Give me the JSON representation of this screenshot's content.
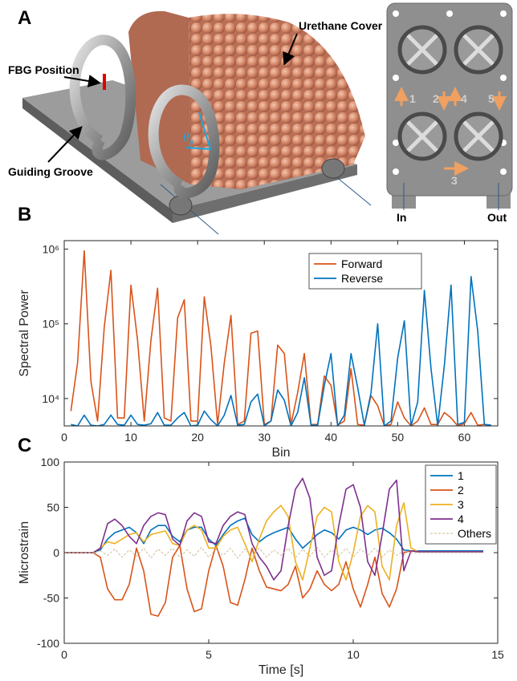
{
  "figure": {
    "panel_labels": [
      "A",
      "B",
      "C"
    ],
    "annotations": [
      "Urethane Cover",
      "FBG Position",
      "Guiding Groove"
    ],
    "angle_label": "θ",
    "angle_subscript": "p",
    "inset_labels": [
      "1",
      "2",
      "3",
      "4",
      "5"
    ],
    "inset_ports": [
      "In",
      "Out"
    ]
  },
  "chart_data": [
    {
      "type": "line",
      "xlabel": "Bin",
      "ylabel": "Spectral Power",
      "log_y": true,
      "legend": "top-right",
      "grid": false,
      "xlim": [
        0,
        65
      ],
      "xticks": [
        0,
        10,
        20,
        30,
        40,
        50,
        60
      ],
      "ylim": [
        4300,
        1300000
      ],
      "yticks": [
        {
          "value": 10000,
          "label": "10⁴"
        },
        {
          "value": 100000,
          "label": "10⁵"
        },
        {
          "value": 1000000,
          "label": "10⁶"
        }
      ],
      "x": [
        1,
        2,
        3,
        4,
        5,
        6,
        7,
        8,
        9,
        10,
        11,
        12,
        13,
        14,
        15,
        16,
        17,
        18,
        19,
        20,
        21,
        22,
        23,
        24,
        25,
        26,
        27,
        28,
        29,
        30,
        31,
        32,
        33,
        34,
        35,
        36,
        37,
        38,
        39,
        40,
        41,
        42,
        43,
        44,
        45,
        46,
        47,
        48,
        49,
        50,
        51,
        52,
        53,
        54,
        55,
        56,
        57,
        58,
        59,
        60,
        61,
        62,
        63,
        64
      ],
      "series": [
        {
          "name": "Forward",
          "color": "#D95319",
          "values": [
            6800,
            30000,
            950000,
            17000,
            5000,
            90000,
            520000,
            5500,
            5500,
            330000,
            60000,
            5000,
            60000,
            300000,
            5500,
            5000,
            120000,
            210000,
            5000,
            5000,
            230000,
            50000,
            4500,
            30000,
            130000,
            4500,
            5000,
            75000,
            80000,
            4500,
            5000,
            52000,
            40000,
            4500,
            12000,
            40000,
            4500,
            4500,
            20000,
            15000,
            4400,
            5000,
            25000,
            4500,
            4400,
            11000,
            8000,
            4300,
            4500,
            9000,
            5500,
            4300,
            5000,
            7500,
            4500,
            4500,
            6500,
            5500,
            4300,
            4600,
            6500,
            4400,
            4500,
            4400
          ]
        },
        {
          "name": "Reverse",
          "color": "#0072BD",
          "values": [
            4500,
            4300,
            6000,
            4400,
            4300,
            4500,
            6000,
            4500,
            4400,
            6000,
            4500,
            4400,
            4600,
            6500,
            4400,
            4400,
            5500,
            6500,
            4300,
            4400,
            6800,
            5200,
            4300,
            6000,
            11000,
            4400,
            4500,
            9000,
            11500,
            4300,
            5000,
            13000,
            9500,
            4300,
            6500,
            19000,
            4400,
            4400,
            15000,
            40000,
            4300,
            6000,
            40000,
            14000,
            4400,
            12000,
            100000,
            4300,
            5000,
            35000,
            110000,
            4300,
            9000,
            280000,
            25000,
            4300,
            28000,
            330000,
            4500,
            4800,
            430000,
            80000,
            4500,
            4400
          ]
        }
      ]
    },
    {
      "type": "line",
      "xlabel": "Time [s]",
      "ylabel": "Microstrain",
      "log_y": false,
      "legend": "top-right",
      "grid": false,
      "xlim": [
        0,
        15
      ],
      "xticks": [
        0,
        5,
        10,
        15
      ],
      "ylim": [
        -100,
        100
      ],
      "yticks": [
        -100,
        -50,
        0,
        50,
        100
      ],
      "x": [
        0,
        0.25,
        0.5,
        0.75,
        1,
        1.25,
        1.5,
        1.75,
        2,
        2.25,
        2.5,
        2.75,
        3,
        3.25,
        3.5,
        3.75,
        4,
        4.25,
        4.5,
        4.75,
        5,
        5.25,
        5.5,
        5.75,
        6,
        6.25,
        6.5,
        6.75,
        7,
        7.25,
        7.5,
        7.75,
        8,
        8.25,
        8.5,
        8.75,
        9,
        9.25,
        9.5,
        9.75,
        10,
        10.25,
        10.5,
        10.75,
        11,
        11.25,
        11.5,
        11.75,
        12,
        12.25,
        12.5,
        12.75,
        13,
        13.25,
        13.5,
        13.75,
        14,
        14.25,
        14.5
      ],
      "series": [
        {
          "name": "1",
          "color": "#0072BD",
          "values": [
            0,
            0,
            0,
            0,
            0,
            3,
            15,
            22,
            25,
            28,
            22,
            10,
            25,
            30,
            30,
            18,
            12,
            25,
            28,
            28,
            15,
            8,
            20,
            30,
            35,
            38,
            20,
            12,
            18,
            22,
            25,
            28,
            15,
            5,
            12,
            20,
            25,
            22,
            15,
            25,
            28,
            25,
            20,
            25,
            27,
            22,
            15,
            3,
            2,
            2,
            2,
            2,
            2,
            2,
            2,
            2,
            2,
            2,
            2
          ]
        },
        {
          "name": "2",
          "color": "#D95319",
          "values": [
            0,
            0,
            0,
            0,
            0,
            -5,
            -40,
            -52,
            -52,
            -35,
            5,
            -20,
            -68,
            -70,
            -55,
            -5,
            8,
            -40,
            -65,
            -62,
            -20,
            8,
            -15,
            -55,
            -58,
            -30,
            5,
            -20,
            -38,
            -40,
            -42,
            -35,
            -15,
            -50,
            -40,
            -20,
            -35,
            -42,
            -35,
            -10,
            -40,
            -60,
            -35,
            -5,
            -45,
            -60,
            -40,
            0,
            2,
            1,
            1,
            1,
            1,
            1,
            1,
            1,
            1,
            1,
            1
          ]
        },
        {
          "name": "3",
          "color": "#EDB120",
          "values": [
            0,
            0,
            0,
            0,
            0,
            5,
            12,
            10,
            15,
            20,
            22,
            12,
            20,
            22,
            24,
            10,
            8,
            25,
            30,
            25,
            5,
            5,
            18,
            25,
            28,
            10,
            -10,
            15,
            35,
            45,
            52,
            40,
            -10,
            -30,
            5,
            40,
            50,
            45,
            -10,
            -30,
            0,
            40,
            52,
            45,
            -15,
            -30,
            30,
            55,
            5,
            1,
            1,
            1,
            1,
            1,
            1,
            1,
            1,
            1,
            1
          ]
        },
        {
          "name": "4",
          "color": "#7E2F8E",
          "values": [
            0,
            0,
            0,
            0,
            0,
            5,
            32,
            37,
            30,
            18,
            10,
            30,
            40,
            44,
            42,
            15,
            8,
            35,
            44,
            40,
            12,
            10,
            30,
            40,
            45,
            42,
            10,
            -5,
            -15,
            -30,
            -20,
            30,
            70,
            82,
            60,
            -5,
            -25,
            -20,
            30,
            70,
            75,
            50,
            -10,
            -25,
            20,
            70,
            80,
            -20,
            2,
            1,
            1,
            1,
            1,
            1,
            1,
            1,
            1,
            1,
            1
          ]
        },
        {
          "name": "Others",
          "color": "#c9b98f",
          "line_style": "dashed",
          "values": [
            0,
            0,
            0,
            0,
            0,
            2,
            -3,
            4,
            -5,
            3,
            -4,
            5,
            -6,
            4,
            -3,
            5,
            -5,
            3,
            -4,
            6,
            -5,
            4,
            -3,
            5,
            -6,
            4,
            -4,
            5,
            -5,
            3,
            -3,
            5,
            -6,
            4,
            -4,
            6,
            -5,
            3,
            -4,
            5,
            -5,
            4,
            -3,
            5,
            -5,
            3,
            -3,
            2,
            0,
            0,
            0,
            0,
            0,
            0,
            0,
            0,
            0,
            0,
            0
          ]
        }
      ]
    }
  ]
}
